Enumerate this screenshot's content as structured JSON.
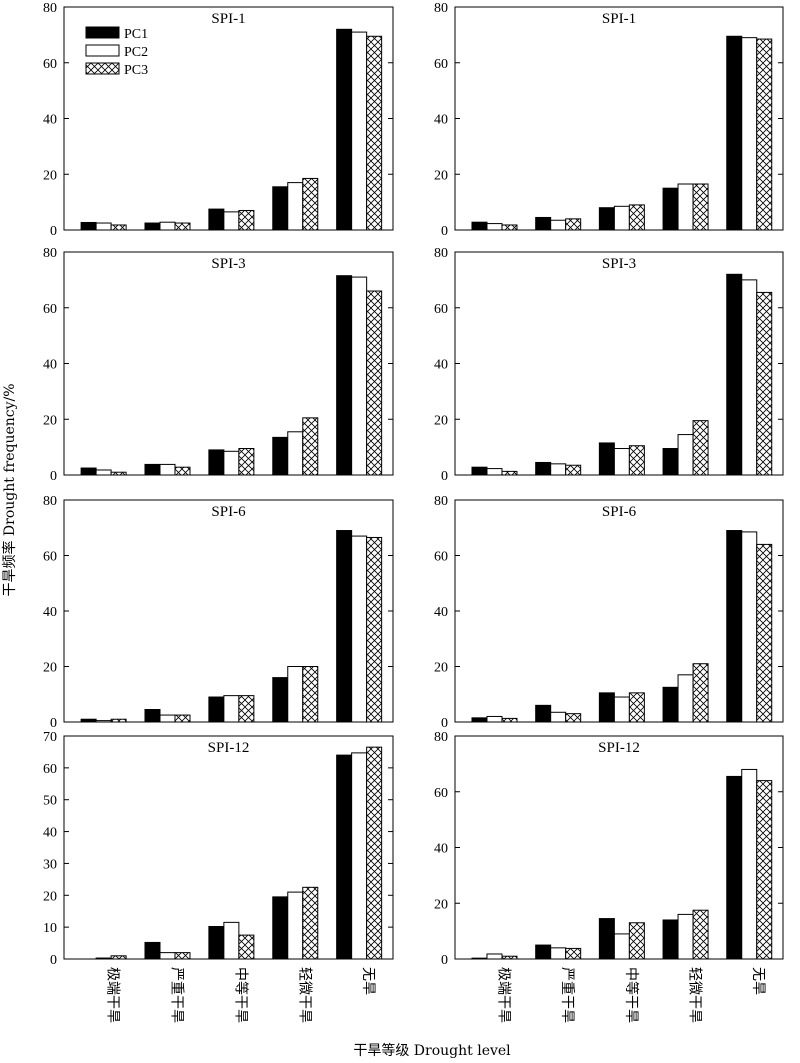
{
  "figure": {
    "ylabel": "干旱频率 Drought frequency/%",
    "xlabel": "干旱等级 Drought level",
    "colors": {
      "PC1": "#000000",
      "PC2": "#ffffff",
      "PC3": "crosshatch"
    }
  },
  "chart_data": [
    {
      "type": "bar",
      "title": "SPI-1",
      "categories": [
        "极端干旱",
        "严重干旱",
        "中等干旱",
        "轻微干旱",
        "无旱"
      ],
      "ylim": [
        0,
        80
      ],
      "yticks": [
        0,
        20,
        40,
        60,
        80
      ],
      "legend": "top-left",
      "series": [
        {
          "name": "PC1",
          "values": [
            2.7,
            2.5,
            7.5,
            15.5,
            72
          ]
        },
        {
          "name": "PC2",
          "values": [
            2.5,
            2.8,
            6.5,
            17,
            71
          ]
        },
        {
          "name": "PC3",
          "values": [
            1.8,
            2.5,
            7,
            18.5,
            69.5
          ]
        }
      ]
    },
    {
      "type": "bar",
      "title": "SPI-1",
      "categories": [
        "极端干旱",
        "严重干旱",
        "中等干旱",
        "轻微干旱",
        "无旱"
      ],
      "ylim": [
        0,
        80
      ],
      "yticks": [
        0,
        20,
        40,
        60,
        80
      ],
      "series": [
        {
          "name": "PC1",
          "values": [
            2.8,
            4.5,
            8,
            15,
            69.5
          ]
        },
        {
          "name": "PC2",
          "values": [
            2.3,
            3.5,
            8.5,
            16.5,
            69
          ]
        },
        {
          "name": "PC3",
          "values": [
            1.8,
            4,
            9,
            16.5,
            68.5
          ]
        }
      ]
    },
    {
      "type": "bar",
      "title": "SPI-3",
      "categories": [
        "极端干旱",
        "严重干旱",
        "中等干旱",
        "轻微干旱",
        "无旱"
      ],
      "ylim": [
        0,
        80
      ],
      "yticks": [
        0,
        20,
        40,
        60,
        80
      ],
      "series": [
        {
          "name": "PC1",
          "values": [
            2.5,
            3.8,
            9,
            13.5,
            71.5
          ]
        },
        {
          "name": "PC2",
          "values": [
            1.8,
            3.8,
            8.5,
            15.5,
            71
          ]
        },
        {
          "name": "PC3",
          "values": [
            1,
            2.8,
            9.5,
            20.5,
            66
          ]
        }
      ]
    },
    {
      "type": "bar",
      "title": "SPI-3",
      "categories": [
        "极端干旱",
        "严重干旱",
        "中等干旱",
        "轻微干旱",
        "无旱"
      ],
      "ylim": [
        0,
        80
      ],
      "yticks": [
        0,
        20,
        40,
        60,
        80
      ],
      "series": [
        {
          "name": "PC1",
          "values": [
            2.8,
            4.5,
            11.5,
            9.5,
            72
          ]
        },
        {
          "name": "PC2",
          "values": [
            2.3,
            4,
            9.5,
            14.5,
            70
          ]
        },
        {
          "name": "PC3",
          "values": [
            1.3,
            3.5,
            10.5,
            19.5,
            65.5
          ]
        }
      ]
    },
    {
      "type": "bar",
      "title": "SPI-6",
      "categories": [
        "极端干旱",
        "严重干旱",
        "中等干旱",
        "轻微干旱",
        "无旱"
      ],
      "ylim": [
        0,
        80
      ],
      "yticks": [
        0,
        20,
        40,
        60,
        80
      ],
      "series": [
        {
          "name": "PC1",
          "values": [
            1,
            4.5,
            9,
            16,
            69
          ]
        },
        {
          "name": "PC2",
          "values": [
            0.5,
            2.5,
            9.5,
            20,
            67
          ]
        },
        {
          "name": "PC3",
          "values": [
            1,
            2.5,
            9.5,
            20,
            66.5
          ]
        }
      ]
    },
    {
      "type": "bar",
      "title": "SPI-6",
      "categories": [
        "极端干旱",
        "严重干旱",
        "中等干旱",
        "轻微干旱",
        "无旱"
      ],
      "ylim": [
        0,
        80
      ],
      "yticks": [
        0,
        20,
        40,
        60,
        80
      ],
      "series": [
        {
          "name": "PC1",
          "values": [
            1.5,
            6,
            10.5,
            12.5,
            69
          ]
        },
        {
          "name": "PC2",
          "values": [
            2,
            3.5,
            9,
            17,
            68.5
          ]
        },
        {
          "name": "PC3",
          "values": [
            1.3,
            3,
            10.5,
            21,
            64
          ]
        }
      ]
    },
    {
      "type": "bar",
      "title": "SPI-12",
      "categories": [
        "极端干旱",
        "严重干旱",
        "中等干旱",
        "轻微干旱",
        "无旱"
      ],
      "ylim": [
        0,
        70
      ],
      "yticks": [
        0,
        10,
        20,
        30,
        40,
        50,
        60,
        70
      ],
      "series": [
        {
          "name": "PC1",
          "values": [
            0,
            5.2,
            10.2,
            19.5,
            64
          ]
        },
        {
          "name": "PC2",
          "values": [
            0.3,
            2,
            11.5,
            21,
            64.7
          ]
        },
        {
          "name": "PC3",
          "values": [
            1,
            2,
            7.5,
            22.5,
            66.5
          ]
        }
      ]
    },
    {
      "type": "bar",
      "title": "SPI-12",
      "categories": [
        "极端干旱",
        "严重干旱",
        "中等干旱",
        "轻微干旱",
        "无旱"
      ],
      "ylim": [
        0,
        80
      ],
      "yticks": [
        0,
        20,
        40,
        60,
        80
      ],
      "series": [
        {
          "name": "PC1",
          "values": [
            0.3,
            5,
            14.5,
            14,
            65.5
          ]
        },
        {
          "name": "PC2",
          "values": [
            1.8,
            4,
            9,
            16,
            68
          ]
        },
        {
          "name": "PC3",
          "values": [
            1,
            3.8,
            13,
            17.5,
            64
          ]
        }
      ]
    }
  ]
}
